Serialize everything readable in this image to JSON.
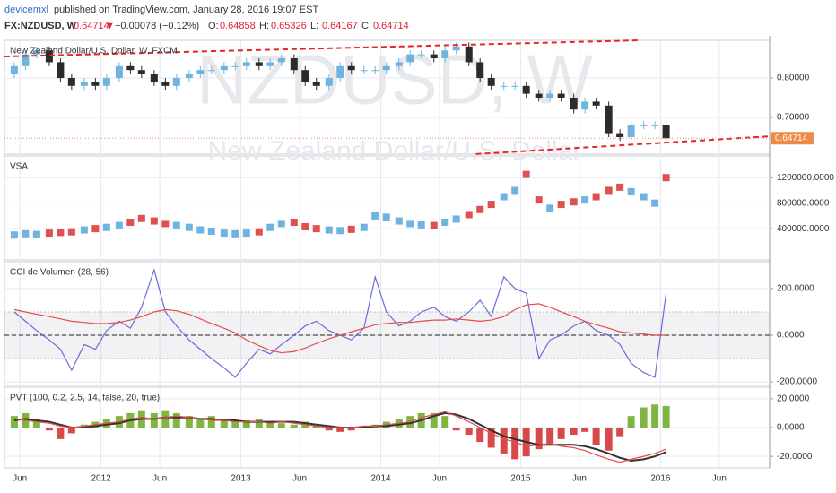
{
  "header": {
    "author": "devicemxl",
    "published": "published on TradingView.com, January 28, 2016 19:07 EST",
    "symbol": "FX:NZDUSD, W",
    "price": "0.64714",
    "arrow": "▼",
    "change": "−0.00078 (−0.12%)",
    "ohlc": [
      {
        "label": "O:",
        "value": "0.64858"
      },
      {
        "label": "H:",
        "value": "0.65326"
      },
      {
        "label": "L:",
        "value": "0.64167"
      },
      {
        "label": "C:",
        "value": "0.64714"
      }
    ]
  },
  "chart_data": [
    {
      "type": "candlestick",
      "legend": "New Zealand Dollar/U.S. Dollar, W, FXCM",
      "watermark": "NZDUSD, W",
      "watermark_subtitle": "New Zealand Dollar/U.S. Dollar",
      "x": [
        2011.38,
        2011.46,
        2011.54,
        2011.63,
        2011.71,
        2011.79,
        2011.88,
        2011.96,
        2012.04,
        2012.13,
        2012.21,
        2012.29,
        2012.38,
        2012.46,
        2012.54,
        2012.63,
        2012.71,
        2012.79,
        2012.88,
        2012.96,
        2013.04,
        2013.13,
        2013.21,
        2013.29,
        2013.38,
        2013.46,
        2013.54,
        2013.63,
        2013.71,
        2013.79,
        2013.88,
        2013.96,
        2014.04,
        2014.13,
        2014.21,
        2014.29,
        2014.38,
        2014.46,
        2014.54,
        2014.63,
        2014.71,
        2014.79,
        2014.88,
        2014.96,
        2015.04,
        2015.13,
        2015.21,
        2015.29,
        2015.38,
        2015.46,
        2015.54,
        2015.63,
        2015.71,
        2015.79,
        2015.88,
        2015.96,
        2016.04
      ],
      "xlim": [
        2011.31,
        2016.78
      ],
      "xticks": [
        {
          "value": 2011.42,
          "label": "Jun"
        },
        2012,
        {
          "value": 2012.42,
          "label": "Jun"
        },
        2013,
        {
          "value": 2013.42,
          "label": "Jun"
        },
        2014,
        {
          "value": 2014.42,
          "label": "Jun"
        },
        2015,
        {
          "value": 2015.42,
          "label": "Jun"
        },
        2016,
        {
          "value": 2016.42,
          "label": "Jun"
        }
      ],
      "open": [
        0.81,
        0.83,
        0.86,
        0.87,
        0.84,
        0.8,
        0.78,
        0.79,
        0.78,
        0.8,
        0.83,
        0.82,
        0.81,
        0.79,
        0.78,
        0.8,
        0.81,
        0.82,
        0.82,
        0.83,
        0.83,
        0.84,
        0.83,
        0.84,
        0.85,
        0.82,
        0.79,
        0.78,
        0.8,
        0.83,
        0.82,
        0.82,
        0.82,
        0.83,
        0.84,
        0.86,
        0.86,
        0.85,
        0.87,
        0.88,
        0.84,
        0.8,
        0.78,
        0.78,
        0.78,
        0.76,
        0.75,
        0.76,
        0.75,
        0.72,
        0.74,
        0.73,
        0.66,
        0.65,
        0.68,
        0.68,
        0.68
      ],
      "high": [
        0.84,
        0.87,
        0.88,
        0.88,
        0.85,
        0.81,
        0.8,
        0.8,
        0.81,
        0.84,
        0.84,
        0.83,
        0.82,
        0.8,
        0.81,
        0.82,
        0.83,
        0.83,
        0.84,
        0.84,
        0.85,
        0.85,
        0.85,
        0.86,
        0.86,
        0.83,
        0.8,
        0.81,
        0.84,
        0.84,
        0.83,
        0.83,
        0.84,
        0.85,
        0.87,
        0.87,
        0.87,
        0.88,
        0.89,
        0.89,
        0.85,
        0.81,
        0.79,
        0.79,
        0.79,
        0.77,
        0.77,
        0.77,
        0.76,
        0.75,
        0.75,
        0.74,
        0.67,
        0.69,
        0.69,
        0.69,
        0.69
      ],
      "low": [
        0.8,
        0.82,
        0.85,
        0.83,
        0.79,
        0.77,
        0.77,
        0.77,
        0.77,
        0.79,
        0.81,
        0.8,
        0.78,
        0.77,
        0.77,
        0.79,
        0.8,
        0.81,
        0.81,
        0.82,
        0.82,
        0.82,
        0.82,
        0.83,
        0.81,
        0.78,
        0.77,
        0.77,
        0.79,
        0.81,
        0.81,
        0.81,
        0.81,
        0.82,
        0.83,
        0.85,
        0.84,
        0.84,
        0.86,
        0.83,
        0.79,
        0.77,
        0.77,
        0.77,
        0.75,
        0.74,
        0.74,
        0.74,
        0.71,
        0.71,
        0.72,
        0.65,
        0.64,
        0.64,
        0.67,
        0.67,
        0.637
      ],
      "close": [
        0.83,
        0.86,
        0.87,
        0.84,
        0.8,
        0.78,
        0.79,
        0.78,
        0.8,
        0.83,
        0.82,
        0.81,
        0.79,
        0.78,
        0.8,
        0.81,
        0.82,
        0.82,
        0.83,
        0.83,
        0.84,
        0.83,
        0.84,
        0.85,
        0.82,
        0.79,
        0.78,
        0.8,
        0.83,
        0.82,
        0.82,
        0.82,
        0.83,
        0.84,
        0.86,
        0.86,
        0.85,
        0.87,
        0.88,
        0.84,
        0.8,
        0.78,
        0.78,
        0.78,
        0.76,
        0.75,
        0.76,
        0.75,
        0.72,
        0.74,
        0.73,
        0.66,
        0.65,
        0.68,
        0.68,
        0.68,
        0.647
      ],
      "up_color": "#6fb3e0",
      "down_color": "#2b2b2b",
      "last": {
        "value": 0.64714,
        "label": "0.64714"
      },
      "last_color": "#f08a4b",
      "trendlines": [
        {
          "color": "#e3262b",
          "x": [
            2011.31,
            2015.85
          ],
          "y": [
            0.8545,
            0.8955
          ]
        },
        {
          "color": "#e3262b",
          "x": [
            2014.68,
            2016.78
          ],
          "y": [
            0.607,
            0.652
          ]
        }
      ],
      "ylim": [
        0.6068,
        0.8955
      ],
      "yticks": [
        {
          "value": 0.8,
          "label": "0.80000"
        },
        {
          "value": 0.7,
          "label": "0.70000"
        }
      ],
      "grid": true
    },
    {
      "type": "volume",
      "legend": "VSA",
      "values": [
        300000,
        320000,
        310000,
        330000,
        340000,
        350000,
        380000,
        400000,
        420000,
        450000,
        500000,
        560000,
        520000,
        480000,
        450000,
        420000,
        380000,
        360000,
        330000,
        320000,
        330000,
        350000,
        420000,
        480000,
        500000,
        430000,
        400000,
        380000,
        370000,
        390000,
        420000,
        600000,
        580000,
        520000,
        480000,
        460000,
        450000,
        500000,
        550000,
        620000,
        700000,
        780000,
        900000,
        1000000,
        1250000,
        850000,
        720000,
        780000,
        820000,
        850000,
        900000,
        1000000,
        1050000,
        980000,
        900000,
        800000,
        1200000
      ],
      "up_color": "#6fb3e0",
      "down_color": "#e05050",
      "ylim": [
        -90000,
        1540000
      ],
      "yticks": [
        {
          "value": 1200000,
          "label": "1200000.0000"
        },
        {
          "value": 800000,
          "label": "800000.0000"
        },
        {
          "value": 400000,
          "label": "400000.0000"
        }
      ],
      "grid": true
    },
    {
      "type": "line",
      "legend": "CCI de Volumen (28, 56)",
      "series": [
        {
          "color": "#6b6bd6",
          "values": [
            100,
            60,
            20,
            -20,
            -60,
            -150,
            -40,
            -60,
            20,
            60,
            30,
            120,
            280,
            100,
            40,
            -20,
            -60,
            -100,
            -140,
            -180,
            -120,
            -60,
            -80,
            -40,
            0,
            40,
            60,
            20,
            0,
            -20,
            30,
            250,
            100,
            40,
            60,
            100,
            120,
            80,
            60,
            100,
            150,
            80,
            250,
            200,
            180,
            -100,
            -20,
            0,
            40,
            60,
            20,
            0,
            -40,
            -120,
            -160,
            -180,
            180
          ]
        },
        {
          "color": "#e84b4b",
          "values": [
            110,
            100,
            90,
            80,
            70,
            60,
            55,
            50,
            50,
            55,
            65,
            80,
            100,
            110,
            105,
            90,
            70,
            50,
            30,
            10,
            -20,
            -45,
            -65,
            -75,
            -70,
            -55,
            -35,
            -15,
            0,
            15,
            30,
            45,
            50,
            55,
            55,
            60,
            65,
            65,
            70,
            65,
            60,
            65,
            80,
            110,
            130,
            135,
            120,
            100,
            80,
            60,
            45,
            30,
            15,
            10,
            5,
            0,
            0
          ]
        }
      ],
      "bands": [
        100,
        -100
      ],
      "zero": 0,
      "ylim": [
        -215,
        315
      ],
      "yticks": [
        {
          "value": 200,
          "label": "200.0000"
        },
        {
          "value": 0,
          "label": "0.0000"
        },
        {
          "value": -200,
          "label": "-200.0000"
        }
      ],
      "grid": true
    },
    {
      "type": "combo",
      "legend": "PVT (100, 0.2, 2.5, 14, false, 20, true)",
      "histogram": [
        8,
        10,
        6,
        -2,
        -8,
        -4,
        2,
        4,
        6,
        8,
        10,
        12,
        10,
        12,
        10,
        8,
        6,
        8,
        6,
        5,
        5,
        6,
        4,
        3,
        2,
        4,
        1,
        -2,
        -3,
        -2,
        1,
        2,
        4,
        6,
        8,
        10,
        10,
        8,
        -2,
        -5,
        -10,
        -14,
        -18,
        -22,
        -20,
        -15,
        -12,
        -8,
        -5,
        -3,
        -12,
        -16,
        -6,
        8,
        14,
        16,
        15
      ],
      "pos_color": "#7fb541",
      "neg_color": "#d84a4a",
      "series": [
        {
          "color": "#333333",
          "values": [
            5,
            6,
            5,
            4,
            2,
            0,
            0,
            1,
            2,
            3,
            5,
            6,
            6,
            7,
            7,
            7,
            6,
            6,
            5,
            5,
            4,
            4,
            4,
            4,
            4,
            3,
            2,
            1,
            0,
            0,
            0,
            1,
            1,
            2,
            3,
            5,
            8,
            10,
            9,
            6,
            2,
            -2,
            -6,
            -8,
            -10,
            -12,
            -12,
            -12,
            -12,
            -13,
            -15,
            -18,
            -21,
            -23,
            -22,
            -20,
            -17
          ]
        },
        {
          "color": "#e84b4b",
          "values": [
            6,
            5,
            4,
            3,
            1,
            0,
            1,
            2,
            3,
            4,
            6,
            7,
            6,
            7,
            8,
            7,
            6,
            5,
            5,
            4,
            4,
            4,
            3,
            4,
            3,
            2,
            1,
            0,
            0,
            0,
            1,
            1,
            2,
            3,
            4,
            7,
            9,
            11,
            8,
            4,
            0,
            -4,
            -8,
            -10,
            -13,
            -12,
            -11,
            -13,
            -14,
            -16,
            -19,
            -22,
            -24,
            -22,
            -20,
            -18,
            -15
          ]
        }
      ],
      "ylim": [
        -28,
        28
      ],
      "yticks": [
        {
          "value": 20,
          "label": "20.0000"
        },
        {
          "value": 0,
          "label": "0.0000"
        },
        {
          "value": -20,
          "label": "-20.0000"
        }
      ],
      "grid": true
    }
  ]
}
